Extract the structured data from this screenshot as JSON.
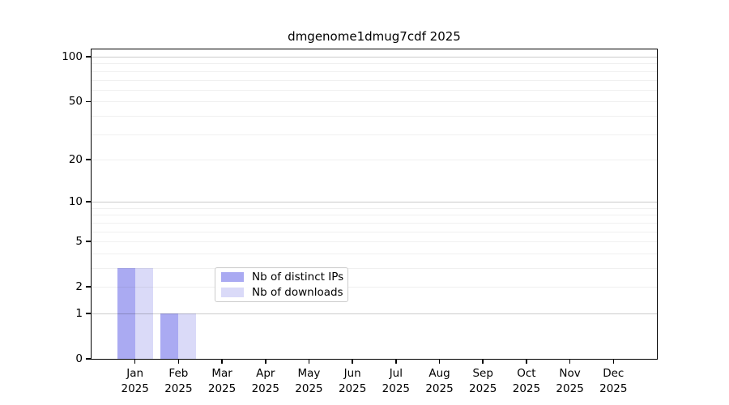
{
  "chart_data": {
    "type": "bar",
    "title": "dmgenome1dmug7cdf 2025",
    "categories": [
      "Jan",
      "Feb",
      "Mar",
      "Apr",
      "May",
      "Jun",
      "Jul",
      "Aug",
      "Sep",
      "Oct",
      "Nov",
      "Dec"
    ],
    "category_year": "2025",
    "series": [
      {
        "name": "Nb of distinct IPs",
        "color": "#aaaaf2",
        "values": [
          3,
          1,
          0,
          0,
          0,
          0,
          0,
          0,
          0,
          0,
          0,
          0
        ]
      },
      {
        "name": "Nb of downloads",
        "color": "#dadaf8",
        "values": [
          3,
          1,
          0,
          0,
          0,
          0,
          0,
          0,
          0,
          0,
          0,
          0
        ]
      }
    ],
    "yscale": "log10(1+x)",
    "ylim": [
      0,
      112
    ],
    "yticks": [
      0,
      1,
      2,
      5,
      10,
      20,
      50,
      100
    ],
    "grid": {
      "major": [
        1,
        10,
        100
      ],
      "minor": [
        2,
        3,
        4,
        5,
        6,
        7,
        8,
        9,
        20,
        30,
        40,
        50,
        60,
        70,
        80,
        90
      ],
      "major_color": "rgba(0,0,0,0.20)",
      "minor_color": "rgba(0,0,0,0.06)"
    },
    "legend_position": "lower center",
    "colors": {
      "axis": "#000000",
      "background": "#ffffff",
      "legend_border": "#cccccc"
    }
  }
}
